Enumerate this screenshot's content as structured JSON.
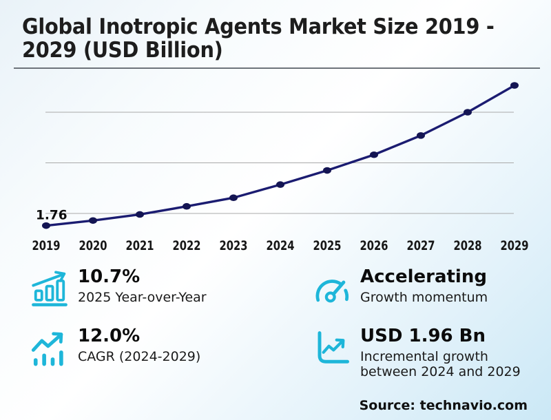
{
  "title_lines": [
    "Global Inotropic Agents Market Size 2019 -",
    "2029 (USD Billion)"
  ],
  "chart_data": {
    "type": "line",
    "title": "Global Inotropic Agents Market Size 2019 - 2029 (USD Billion)",
    "x": [
      2019,
      2020,
      2021,
      2022,
      2023,
      2024,
      2025,
      2026,
      2027,
      2028,
      2029
    ],
    "series": [
      {
        "name": "Market size (USD Billion)",
        "values": [
          1.76,
          1.86,
          1.98,
          2.14,
          2.31,
          2.57,
          2.85,
          3.16,
          3.54,
          4.0,
          4.53
        ]
      }
    ],
    "point_labels": {
      "2019": "1.76"
    },
    "gridline_values": [
      2,
      3,
      4
    ],
    "ylim": [
      1.6,
      4.8
    ],
    "grid": true,
    "legend": false,
    "xlabel": "",
    "ylabel": ""
  },
  "stats": [
    {
      "icon": "bar-chart-growth-icon",
      "value": "10.7%",
      "label": "2025 Year-over-Year"
    },
    {
      "icon": "speedometer-icon",
      "value": "Accelerating",
      "label": "Growth momentum"
    },
    {
      "icon": "trend-arrow-bars-icon",
      "value": "12.0%",
      "label": "CAGR (2024-2029)"
    },
    {
      "icon": "axes-trend-icon",
      "value": "USD 1.96 Bn",
      "label": "Incremental growth between 2024 and 2029"
    }
  ],
  "source": "Source: technavio.com",
  "colors": {
    "accent": "#1eb6d9",
    "line": "#1b1c71",
    "marker": "#141553",
    "grid": "#a9a9a9",
    "text": "#161616",
    "divider": "#6d737a"
  }
}
